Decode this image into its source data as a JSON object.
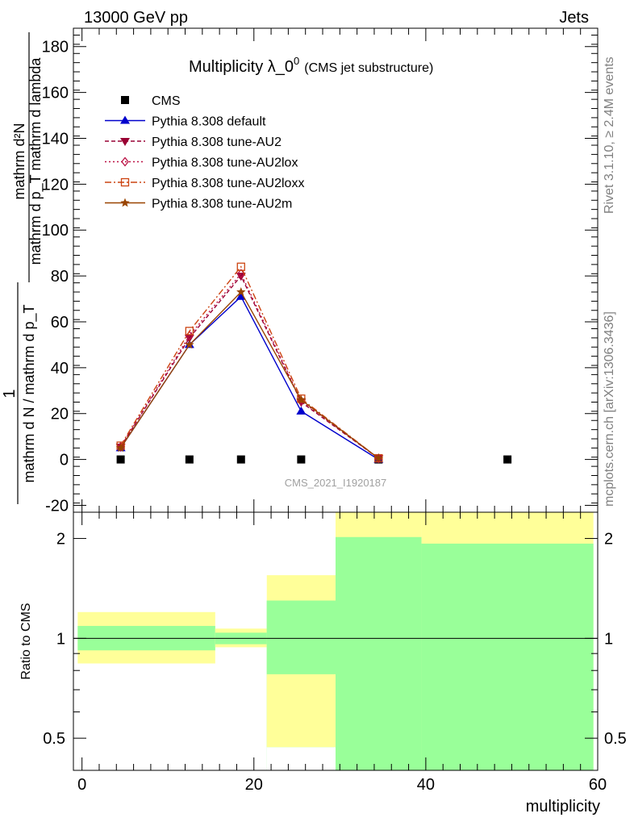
{
  "header": {
    "left": "13000 GeV pp",
    "right": "Jets"
  },
  "side_labels": {
    "rivet": "Rivet 3.1.10, ≥ 2.4M events",
    "mcplots": "mcplots.cern.ch [arXiv:1306.3436]"
  },
  "watermark": "CMS_2021_I1920187",
  "chart_data": [
    {
      "type": "line",
      "title": "Multiplicity λ_0",
      "title_sup": "0",
      "subtitle": "(CMS jet substructure)",
      "xlabel": "multiplicity",
      "ylabel": {
        "numerator": "mathrm d²N",
        "denominator": "mathrm d p_T mathrm d lambda",
        "prefix": "1",
        "prefix_den": "mathrm d N / mathrm d p_T"
      },
      "xlim": [
        -1,
        60
      ],
      "ylim": [
        -23,
        188
      ],
      "y_ticks": [
        -20,
        0,
        20,
        40,
        60,
        80,
        100,
        120,
        140,
        160,
        180
      ],
      "x_ticks": [
        0,
        20,
        40,
        60
      ],
      "legend_position": "top-left",
      "series": [
        {
          "name": "CMS",
          "color": "#000000",
          "marker": "square",
          "dash": "none",
          "x": [
            4.5,
            12.5,
            18.5,
            25.5,
            34.5,
            49.5
          ],
          "y": [
            0,
            0,
            0,
            0,
            0,
            0
          ]
        },
        {
          "name": "Pythia 8.308 default",
          "color": "#0000cc",
          "marker": "triangle-up",
          "dash": "solid",
          "x": [
            4.5,
            12.5,
            18.5,
            25.5,
            34.5
          ],
          "y": [
            5,
            50,
            71,
            21,
            0
          ]
        },
        {
          "name": "Pythia 8.308 tune-AU2",
          "color": "#990033",
          "marker": "triangle-down",
          "dash": "short-dash",
          "x": [
            4.5,
            12.5,
            18.5,
            25.5,
            34.5
          ],
          "y": [
            5.5,
            53,
            80,
            25,
            0.5
          ]
        },
        {
          "name": "Pythia 8.308 tune-AU2lox",
          "color": "#bb1144",
          "marker": "diamond-open",
          "dash": "dot",
          "x": [
            4.5,
            12.5,
            18.5,
            25.5,
            34.5
          ],
          "y": [
            5.5,
            54,
            81,
            25.5,
            0.5
          ]
        },
        {
          "name": "Pythia 8.308 tune-AU2loxx",
          "color": "#cc4411",
          "marker": "square-open",
          "dash": "dash-dot",
          "x": [
            4.5,
            12.5,
            18.5,
            25.5,
            34.5
          ],
          "y": [
            6,
            56,
            84,
            26.5,
            0.5
          ]
        },
        {
          "name": "Pythia 8.308 tune-AU2m",
          "color": "#994400",
          "marker": "star",
          "dash": "solid",
          "x": [
            4.5,
            12.5,
            18.5,
            25.5,
            34.5
          ],
          "y": [
            5,
            50,
            73,
            26,
            0.5
          ]
        }
      ]
    },
    {
      "type": "area",
      "ylabel": "Ratio to CMS",
      "xlabel": "multiplicity",
      "xlim": [
        -1,
        60
      ],
      "ylim": [
        0.4,
        2.4
      ],
      "y_scale": "log",
      "y_ticks": [
        0.5,
        1,
        2
      ],
      "reference_line": 1,
      "bands": [
        {
          "x": [
            -0.5,
            15.5
          ],
          "green": [
            0.92,
            1.09
          ],
          "yellow": [
            0.84,
            1.2
          ]
        },
        {
          "x": [
            15.5,
            21.5
          ],
          "green": [
            0.96,
            1.04
          ],
          "yellow": [
            0.94,
            1.07
          ]
        },
        {
          "x": [
            21.5,
            29.5
          ],
          "green": [
            0.4,
            1.3
          ],
          "yellow": [
            0.47,
            1.55
          ]
        },
        {
          "x": [
            29.5,
            39.5
          ],
          "green": [
            0.4,
            2.02
          ],
          "yellow": [
            0.4,
            2.4
          ]
        },
        {
          "x": [
            39.5,
            59.5
          ],
          "green": [
            0.4,
            1.93
          ],
          "yellow": [
            0.4,
            2.4
          ]
        }
      ],
      "band_overrides": [
        {
          "x": [
            21.5,
            29.5
          ],
          "lower_green_edge": 0.78
        }
      ],
      "band_colors": {
        "green": "#99ff99",
        "yellow": "#ffff99"
      }
    }
  ]
}
